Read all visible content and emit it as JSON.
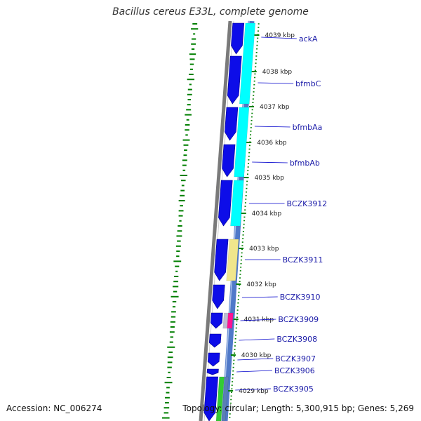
{
  "title": "Bacillus cereus E33L, complete genome",
  "accession_label": "Accession: NC_006274",
  "topology_label": "Topology: circular; Length: 5,300,915 bp; Genes: 5,269",
  "kbp_ticks": [
    "4039 kbp",
    "4038 kbp",
    "4037 kbp",
    "4036 kbp",
    "4035 kbp",
    "4034 kbp",
    "4033 kbp",
    "4032 kbp",
    "4031 kbp",
    "4030 kbp",
    "4029 kbp"
  ],
  "genes": [
    "ackA",
    "bfmbC",
    "bfmbAa",
    "bfmbAb",
    "BCZK3912",
    "BCZK3911",
    "BCZK3910",
    "BCZK3909",
    "BCZK3908",
    "BCZK3907",
    "BCZK3906",
    "BCZK3905"
  ],
  "colors": {
    "gene_arrow": "#0d0de8",
    "cog_cyan": "#00ffff",
    "cog_khaki": "#f0e68c",
    "cog_pink": "#ff1493",
    "cog_green": "#33cc33",
    "backbone": "#808080",
    "gc_skew": "#007f00",
    "tick": "#008000",
    "label_line": "#0000cc"
  }
}
